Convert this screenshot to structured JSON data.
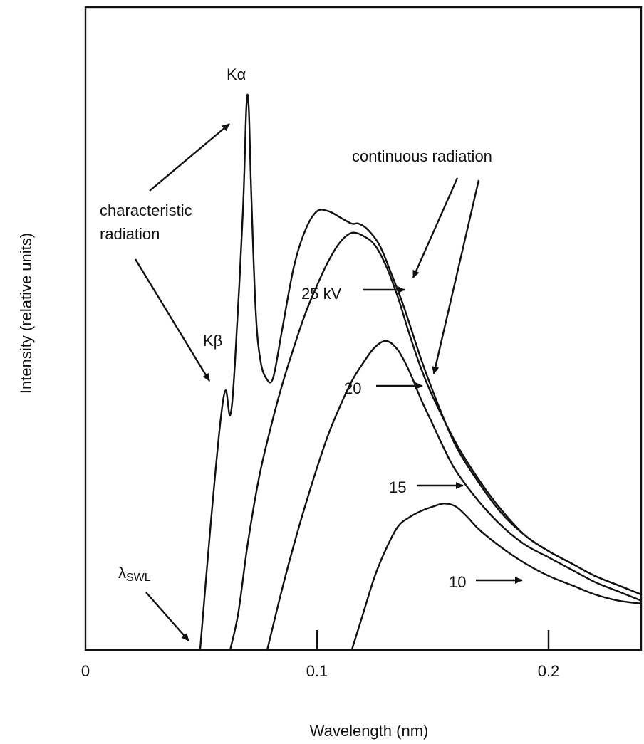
{
  "chart_data": {
    "type": "line",
    "title": "",
    "xlabel": "Wavelength (nm)",
    "ylabel": "Intensity (relative units)",
    "xlim": [
      0,
      0.24
    ],
    "ylim": [
      0,
      1
    ],
    "grid": false,
    "x_ticks": [
      {
        "value": 0,
        "label": "0"
      },
      {
        "value": 0.1,
        "label": "0.1"
      },
      {
        "value": 0.2,
        "label": "0.2"
      }
    ],
    "series": [
      {
        "name": "25 kV",
        "x": [
          0.0495,
          0.054,
          0.058,
          0.0605,
          0.0625,
          0.0645,
          0.068,
          0.0695,
          0.0705,
          0.0715,
          0.0735,
          0.0755,
          0.078,
          0.081,
          0.085,
          0.09,
          0.095,
          0.1,
          0.105,
          0.11,
          0.115,
          0.118,
          0.122,
          0.127,
          0.132,
          0.138,
          0.145,
          0.152,
          0.16,
          0.17,
          0.18,
          0.19,
          0.2,
          0.21,
          0.22,
          0.23,
          0.24
        ],
        "y": [
          0.0,
          0.2,
          0.36,
          0.42,
          0.38,
          0.46,
          0.71,
          0.88,
          0.88,
          0.75,
          0.55,
          0.47,
          0.44,
          0.44,
          0.52,
          0.62,
          0.68,
          0.71,
          0.71,
          0.7,
          0.69,
          0.69,
          0.68,
          0.655,
          0.61,
          0.55,
          0.47,
          0.4,
          0.33,
          0.27,
          0.22,
          0.185,
          0.16,
          0.14,
          0.12,
          0.105,
          0.09
        ]
      },
      {
        "name": "20",
        "x": [
          0.0625,
          0.066,
          0.07,
          0.075,
          0.08,
          0.085,
          0.09,
          0.095,
          0.1,
          0.105,
          0.11,
          0.115,
          0.12,
          0.125,
          0.13,
          0.135,
          0.14,
          0.145,
          0.15,
          0.16,
          0.17,
          0.18,
          0.19,
          0.2,
          0.21,
          0.22,
          0.23,
          0.24
        ],
        "y": [
          0.0,
          0.06,
          0.17,
          0.28,
          0.36,
          0.43,
          0.49,
          0.545,
          0.59,
          0.63,
          0.66,
          0.675,
          0.67,
          0.655,
          0.62,
          0.57,
          0.51,
          0.455,
          0.41,
          0.335,
          0.275,
          0.225,
          0.185,
          0.16,
          0.14,
          0.12,
          0.105,
          0.09
        ]
      },
      {
        "name": "15",
        "x": [
          0.0785,
          0.085,
          0.09,
          0.095,
          0.1,
          0.105,
          0.11,
          0.115,
          0.12,
          0.125,
          0.13,
          0.135,
          0.14,
          0.145,
          0.15,
          0.155,
          0.16,
          0.17,
          0.18,
          0.19,
          0.2,
          0.21,
          0.22,
          0.23,
          0.24
        ],
        "y": [
          0.0,
          0.1,
          0.17,
          0.235,
          0.295,
          0.35,
          0.395,
          0.435,
          0.465,
          0.49,
          0.5,
          0.485,
          0.45,
          0.405,
          0.365,
          0.325,
          0.29,
          0.24,
          0.2,
          0.17,
          0.15,
          0.13,
          0.11,
          0.095,
          0.08
        ]
      },
      {
        "name": "10",
        "x": [
          0.115,
          0.12,
          0.125,
          0.13,
          0.135,
          0.14,
          0.145,
          0.15,
          0.155,
          0.16,
          0.165,
          0.17,
          0.18,
          0.19,
          0.2,
          0.21,
          0.22,
          0.23,
          0.24
        ],
        "y": [
          0.0,
          0.06,
          0.12,
          0.165,
          0.2,
          0.215,
          0.225,
          0.232,
          0.237,
          0.232,
          0.215,
          0.195,
          0.165,
          0.14,
          0.12,
          0.105,
          0.09,
          0.08,
          0.075
        ]
      }
    ],
    "annotations": {
      "k_alpha": "Kα",
      "k_beta": "Kβ",
      "characteristic": [
        "characteristic",
        "radiation"
      ],
      "continuous": "continuous radiation",
      "swl_lambda": "λ",
      "swl_sub": "SWL",
      "kv_25": "25 kV",
      "kv_20": "20",
      "kv_15": "15",
      "kv_10": "10"
    }
  }
}
